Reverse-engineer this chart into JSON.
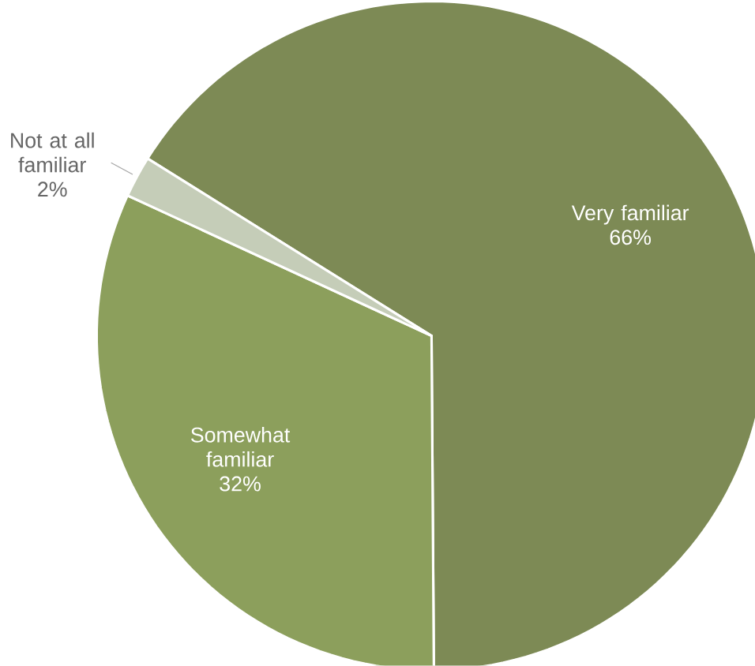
{
  "chart_data": {
    "type": "pie",
    "categories": [
      "Very familiar",
      "Somewhat familiar",
      "Not at all familiar"
    ],
    "values": [
      66,
      32,
      2
    ],
    "colors": [
      "#7d8a55",
      "#8c9f5c",
      "#c5cdb8"
    ],
    "value_labels": [
      "66%",
      "32%",
      "2%"
    ]
  }
}
